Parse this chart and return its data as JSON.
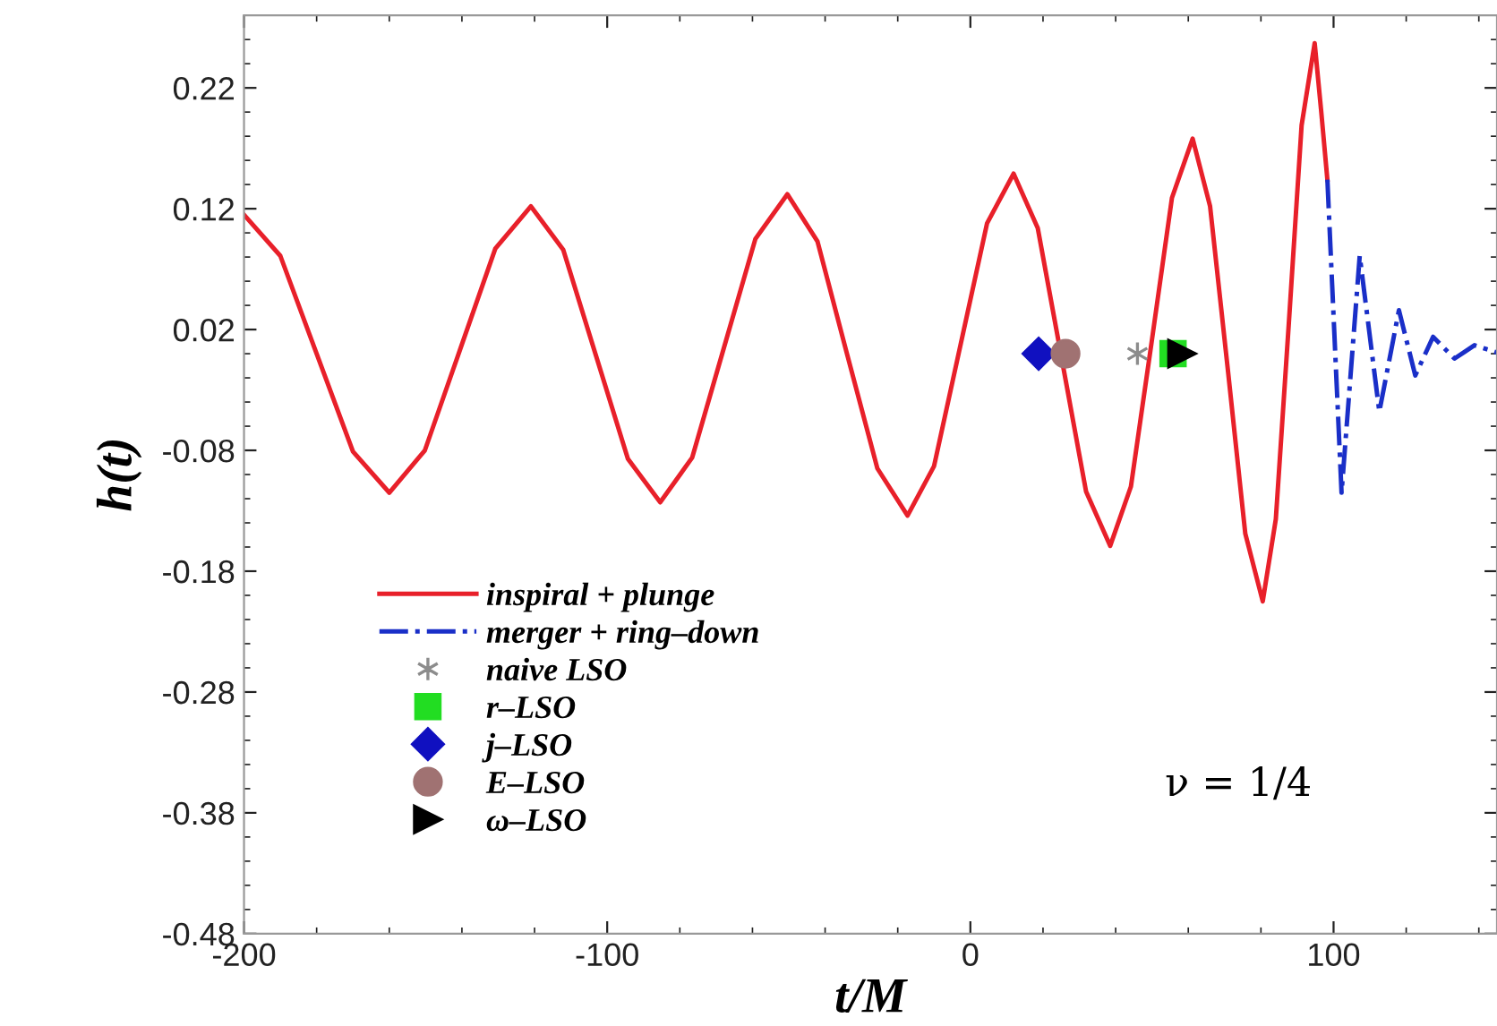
{
  "chart_data": {
    "type": "line",
    "xlabel": "t/M",
    "ylabel": "h(t)",
    "xlim": [
      -200,
      145
    ],
    "ylim": [
      -0.48,
      0.28
    ],
    "xticks": [
      -200,
      -100,
      0,
      100
    ],
    "yticks": [
      -0.48,
      -0.38,
      -0.28,
      -0.18,
      -0.08,
      0.02,
      0.12,
      0.22
    ],
    "grid": false,
    "legend": "lower left",
    "annotations": [
      "ν = 1/4"
    ],
    "series": [
      {
        "name": "inspiral + plunge",
        "color": "#e8202a",
        "line_style": "solid",
        "x": [
          -200,
          -190,
          -180,
          -170,
          -160,
          -150.2,
          -140.5,
          -130.8,
          -121,
          -112.1,
          -103.2,
          -94.3,
          -85.4,
          -76.6,
          -67.9,
          -59.2,
          -50.4,
          -42.1,
          -33.9,
          -25.6,
          -17.3,
          -10.0,
          -2.7,
          4.6,
          11.9,
          18.55,
          25.2,
          31.85,
          38.5,
          44.2,
          49.9,
          55.5,
          61.2,
          66.0,
          70.9,
          75.7,
          80.5,
          84.1,
          87.7,
          91.2,
          94.8,
          96.6,
          98.3
        ],
        "values": [
          0.115,
          0.081,
          0.0,
          -0.081,
          -0.115,
          -0.08,
          0.0035,
          0.087,
          0.122,
          0.086,
          -0.0005,
          -0.087,
          -0.123,
          -0.086,
          0.0045,
          0.095,
          0.132,
          0.093,
          -0.001,
          -0.095,
          -0.134,
          -0.093,
          0.0075,
          0.108,
          0.149,
          0.104,
          -0.005,
          -0.114,
          -0.159,
          -0.11,
          0.0095,
          0.129,
          0.178,
          0.122,
          -0.0135,
          -0.149,
          -0.205,
          -0.137,
          0.026,
          0.189,
          0.257,
          0.2005,
          0.144
        ]
      },
      {
        "name": "merger + ring–down",
        "color": "#1a2fc8",
        "line_style": "dashdot",
        "x": [
          98.3,
          100.25,
          102.2,
          104.7,
          107.2,
          109.9,
          112.6,
          115.3,
          118,
          120.25,
          122.5,
          124.95,
          127.4,
          130.35,
          133.3,
          136.05,
          138.8,
          141.9,
          145
        ],
        "values": [
          0.144,
          0.0145,
          -0.115,
          -0.017,
          0.081,
          0.0165,
          -0.048,
          -0.006,
          0.036,
          0.009,
          -0.018,
          -0.002,
          0.014,
          0.005,
          -0.004,
          0.0015,
          0.007,
          0.004,
          0.001
        ]
      },
      {
        "name": "naive LSO",
        "type": "scatter",
        "color": "#8c8c8c",
        "marker": "cross",
        "x": [
          46
        ],
        "values": [
          0.0
        ]
      },
      {
        "name": "r–LSO",
        "type": "scatter",
        "color": "#22dd22",
        "marker": "square",
        "x": [
          55.8
        ],
        "values": [
          0.0
        ]
      },
      {
        "name": "j–LSO",
        "type": "scatter",
        "color": "#1010c0",
        "marker": "diamond",
        "x": [
          18.8
        ],
        "values": [
          0.0
        ]
      },
      {
        "name": "E–LSO",
        "type": "scatter",
        "color": "#a07272",
        "marker": "circle",
        "x": [
          26.2
        ],
        "values": [
          0.0
        ]
      },
      {
        "name": "ω–LSO",
        "type": "scatter",
        "color": "#000000",
        "marker": "triangle",
        "x": [
          58.3
        ],
        "values": [
          0.0
        ]
      }
    ]
  }
}
